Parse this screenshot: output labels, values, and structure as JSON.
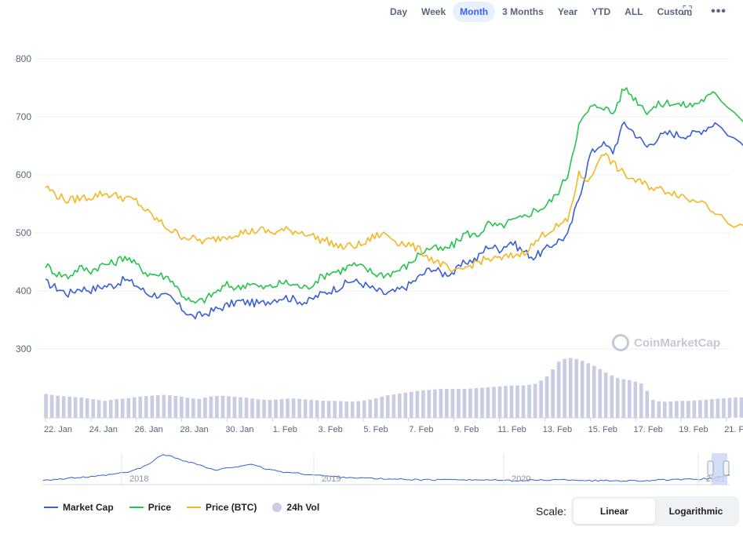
{
  "range": {
    "options": [
      "Day",
      "Week",
      "Month",
      "3 Months",
      "Year",
      "YTD",
      "ALL",
      "Custom"
    ],
    "active": "Month"
  },
  "icons": {
    "fullscreen": "fullscreen-icon",
    "more": "more-icon"
  },
  "watermark": "CoinMarketCap",
  "legend": {
    "market_cap": "Market Cap",
    "price": "Price",
    "price_btc": "Price (BTC)",
    "volume": "24h Vol"
  },
  "scale": {
    "label": "Scale:",
    "linear": "Linear",
    "logarithmic": "Logarithmic",
    "active": "Linear"
  },
  "colors": {
    "market_cap": "#3a5ed8",
    "price": "#28c34f",
    "price_btc": "#f5b621",
    "volume": "#c9cde4",
    "grid": "#eef0f3"
  },
  "chart_data": {
    "type": "line",
    "yticks": [
      300,
      400,
      500,
      600,
      700,
      800
    ],
    "ylim": [
      280,
      820
    ],
    "xticks": [
      "22. Jan",
      "24. Jan",
      "26. Jan",
      "28. Jan",
      "30. Jan",
      "1. Feb",
      "3. Feb",
      "5. Feb",
      "7. Feb",
      "9. Feb",
      "11. Feb",
      "13. Feb",
      "15. Feb",
      "17. Feb",
      "19. Feb",
      "21. Feb"
    ],
    "x_days": [
      0,
      0.5,
      1,
      1.5,
      2,
      2.5,
      3,
      3.5,
      4,
      4.5,
      5,
      5.5,
      6,
      6.5,
      7,
      7.5,
      8,
      8.5,
      9,
      9.5,
      10,
      10.5,
      11,
      11.5,
      12,
      12.5,
      13,
      13.5,
      14,
      14.5,
      15,
      15.5,
      16,
      16.5,
      17,
      17.5,
      18,
      18.5,
      19,
      19.5,
      20,
      20.5,
      21,
      21.5,
      22,
      22.5,
      23,
      23.5,
      24,
      24.5,
      25,
      25.5,
      26,
      26.5,
      27,
      27.5,
      28,
      28.5,
      29,
      29.5,
      30.9
    ],
    "series": [
      {
        "name": "Market Cap",
        "values": [
          415,
          405,
          395,
          405,
          402,
          408,
          410,
          420,
          410,
          395,
          393,
          388,
          370,
          355,
          360,
          368,
          375,
          382,
          380,
          378,
          385,
          390,
          385,
          380,
          392,
          400,
          408,
          418,
          412,
          402,
          395,
          400,
          410,
          425,
          440,
          430,
          432,
          450,
          455,
          478,
          472,
          485,
          470,
          458,
          470,
          485,
          495,
          560,
          635,
          655,
          640,
          690,
          670,
          648,
          665,
          672,
          668,
          670,
          678,
          690,
          645
        ]
      },
      {
        "name": "Price",
        "values": [
          445,
          430,
          425,
          440,
          435,
          445,
          448,
          460,
          445,
          430,
          428,
          422,
          395,
          378,
          385,
          398,
          410,
          405,
          415,
          405,
          408,
          415,
          410,
          405,
          420,
          432,
          435,
          445,
          440,
          430,
          428,
          435,
          445,
          465,
          475,
          470,
          480,
          500,
          495,
          515,
          510,
          520,
          525,
          538,
          545,
          565,
          600,
          685,
          715,
          720,
          705,
          750,
          730,
          710,
          720,
          725,
          720,
          720,
          730,
          740,
          690
        ]
      },
      {
        "name": "Price (BTC)",
        "values": [
          580,
          565,
          555,
          560,
          562,
          568,
          565,
          560,
          555,
          535,
          520,
          505,
          495,
          490,
          485,
          490,
          495,
          500,
          502,
          505,
          500,
          505,
          503,
          500,
          490,
          485,
          475,
          478,
          480,
          495,
          498,
          485,
          480,
          470,
          455,
          445,
          430,
          440,
          450,
          455,
          455,
          460,
          465,
          480,
          500,
          510,
          520,
          600,
          590,
          640,
          620,
          600,
          590,
          582,
          575,
          572,
          565,
          555,
          560,
          530,
          505
        ]
      },
      {
        "name": "24h Vol",
        "values": [
          28,
          26,
          25,
          24,
          22,
          20,
          22,
          23,
          25,
          26,
          27,
          26,
          24,
          22,
          25,
          26,
          25,
          24,
          22,
          21,
          22,
          23,
          22,
          21,
          20,
          20,
          19,
          20,
          22,
          26,
          28,
          30,
          32,
          33,
          34,
          34,
          34,
          35,
          36,
          37,
          38,
          38,
          40,
          50,
          68,
          70,
          66,
          60,
          52,
          46,
          44,
          40,
          20,
          19,
          20,
          20,
          21,
          22,
          23,
          24,
          24
        ]
      }
    ]
  },
  "navigator": {
    "labels": [
      "2018",
      "2019",
      "2020",
      "2021"
    ]
  }
}
